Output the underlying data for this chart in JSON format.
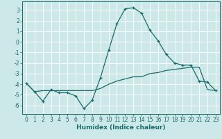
{
  "title": "",
  "xlabel": "Humidex (Indice chaleur)",
  "ylabel": "",
  "bg_color": "#cce8e8",
  "grid_color": "#ffffff",
  "line_color": "#1a6b6b",
  "xlim": [
    -0.5,
    23.5
  ],
  "ylim": [
    -6.8,
    3.8
  ],
  "yticks": [
    -6,
    -5,
    -4,
    -3,
    -2,
    -1,
    0,
    1,
    2,
    3
  ],
  "xticks": [
    0,
    1,
    2,
    3,
    4,
    5,
    6,
    7,
    8,
    9,
    10,
    11,
    12,
    13,
    14,
    15,
    16,
    17,
    18,
    19,
    20,
    21,
    22,
    23
  ],
  "series1_x": [
    0,
    1,
    2,
    3,
    4,
    5,
    6,
    7,
    8,
    9,
    10,
    11,
    12,
    13,
    14,
    15,
    16,
    17,
    18,
    19,
    20,
    21,
    22,
    23
  ],
  "series1_y": [
    -3.9,
    -4.7,
    -5.6,
    -4.5,
    -4.8,
    -4.8,
    -5.1,
    -6.3,
    -5.5,
    -3.4,
    -0.8,
    1.7,
    3.1,
    3.2,
    2.7,
    1.1,
    0.1,
    -1.2,
    -2.0,
    -2.2,
    -2.2,
    -3.7,
    -3.8,
    -4.6
  ],
  "series2_x": [
    0,
    1,
    2,
    3,
    4,
    5,
    6,
    7,
    8,
    9,
    10,
    11,
    12,
    13,
    14,
    15,
    16,
    17,
    18,
    19,
    20,
    21,
    22,
    23
  ],
  "series2_y": [
    -3.9,
    -4.7,
    -4.6,
    -4.6,
    -4.6,
    -4.6,
    -4.6,
    -4.6,
    -4.6,
    -4.4,
    -4.0,
    -3.7,
    -3.5,
    -3.3,
    -3.3,
    -3.0,
    -2.9,
    -2.7,
    -2.6,
    -2.5,
    -2.4,
    -2.4,
    -4.5,
    -4.6
  ],
  "tick_fontsize": 5.5,
  "xlabel_fontsize": 6.5,
  "xlabel_fontweight": "bold"
}
